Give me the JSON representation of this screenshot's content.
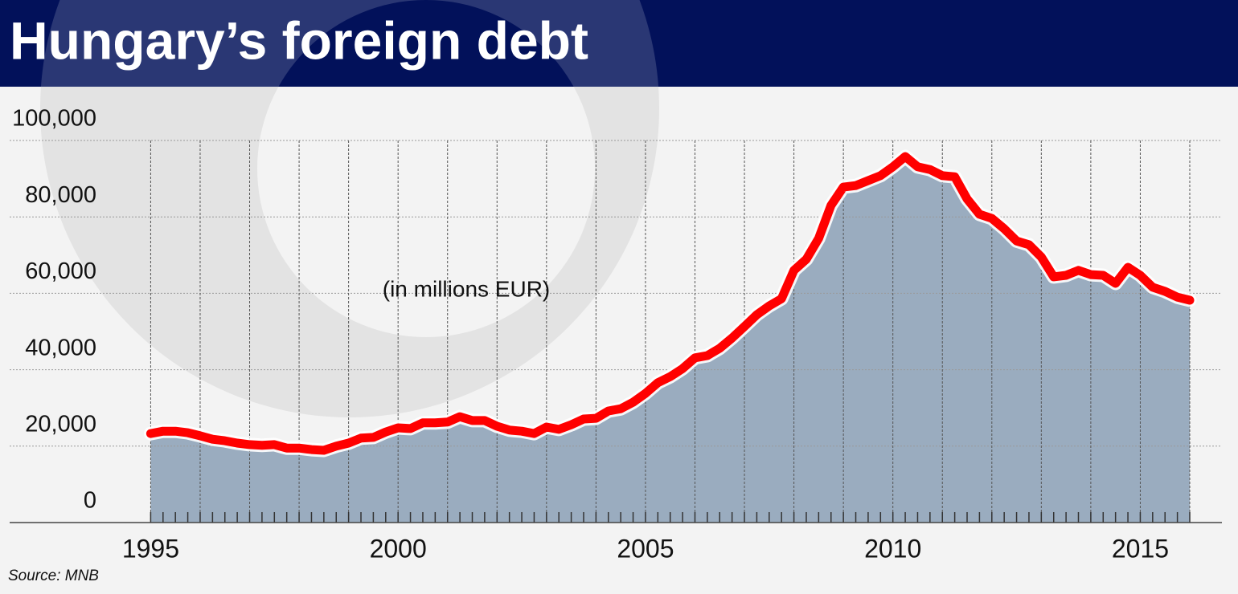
{
  "chart_data": {
    "type": "area-line",
    "title": "Hungary’s foreign debt",
    "annotation": "(in millions EUR)",
    "source": "Source: MNB",
    "color": "#ff0000",
    "fill": "#9aacbf",
    "x": [
      1995,
      1995.25,
      1995.5,
      1995.75,
      1996,
      1996.25,
      1996.5,
      1996.75,
      1997,
      1997.25,
      1997.5,
      1997.75,
      1998,
      1998.25,
      1998.5,
      1998.75,
      1999,
      1999.25,
      1999.5,
      1999.75,
      2000,
      2000.25,
      2000.5,
      2000.75,
      2001,
      2001.25,
      2001.5,
      2001.75,
      2002,
      2002.25,
      2002.5,
      2002.75,
      2003,
      2003.25,
      2003.5,
      2003.75,
      2004,
      2004.25,
      2004.5,
      2004.75,
      2005,
      2005.25,
      2005.5,
      2005.75,
      2006,
      2006.25,
      2006.5,
      2006.75,
      2007,
      2007.25,
      2007.5,
      2007.75,
      2008,
      2008.25,
      2008.5,
      2008.75,
      2009,
      2009.25,
      2009.5,
      2009.75,
      2010,
      2010.25,
      2010.5,
      2010.75,
      2011,
      2011.25,
      2011.5,
      2011.75,
      2012,
      2012.25,
      2012.5,
      2012.75,
      2013,
      2013.25,
      2013.5,
      2013.75,
      2014,
      2014.25,
      2014.5,
      2014.75,
      2015,
      2015.25,
      2015.5,
      2015.75,
      2016
    ],
    "values": [
      23300,
      23900,
      23900,
      23500,
      22700,
      21800,
      21400,
      20800,
      20400,
      20200,
      20400,
      19500,
      19500,
      19100,
      18900,
      20000,
      20800,
      22100,
      22300,
      23700,
      24800,
      24600,
      26100,
      26100,
      26300,
      27700,
      26700,
      26700,
      25200,
      24200,
      23900,
      23300,
      25000,
      24400,
      25600,
      27100,
      27300,
      29200,
      29800,
      31500,
      33800,
      36600,
      38200,
      40300,
      43100,
      43700,
      45600,
      48300,
      51300,
      54400,
      56700,
      58600,
      66000,
      68900,
      74400,
      83000,
      87800,
      88200,
      89500,
      90800,
      93100,
      95800,
      93100,
      92400,
      90800,
      90500,
      84700,
      80700,
      79600,
      76900,
      73700,
      72700,
      69500,
      64300,
      64700,
      66000,
      64900,
      64700,
      62600,
      66800,
      64700,
      61600,
      60500,
      59000,
      58200
    ],
    "xlim": [
      1992.15,
      2016.65
    ],
    "xticks": [
      1995,
      2000,
      2005,
      2010,
      2015
    ],
    "ylim": [
      0,
      100000
    ],
    "yticks": [
      0,
      {
        "value": 20000,
        "label": "20,000"
      },
      {
        "value": 40000,
        "label": "40,000"
      },
      {
        "value": 60000,
        "label": "60,000"
      },
      {
        "value": 80000,
        "label": "80,000"
      },
      {
        "value": 100000,
        "label": "100,000"
      }
    ],
    "grid": true
  }
}
